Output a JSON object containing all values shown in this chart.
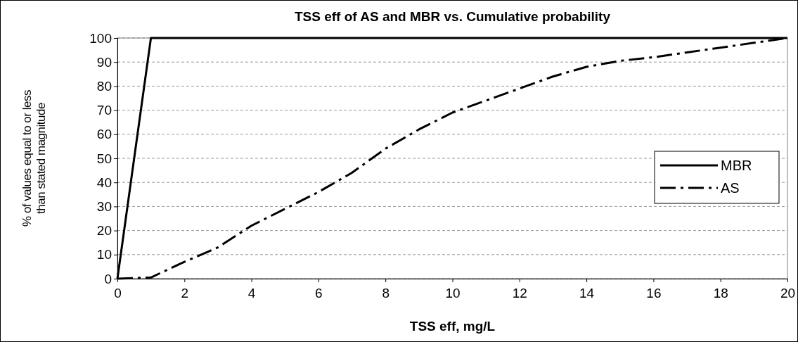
{
  "chart_data": {
    "type": "line",
    "title": "TSS eff of AS and MBR vs. Cumulative probability",
    "xlabel": "TSS eff, mg/L",
    "ylabel": "% of values equal to or less\nthan stated magnitude",
    "xlim": [
      0,
      20
    ],
    "xticks": [
      0,
      2,
      4,
      6,
      8,
      10,
      12,
      14,
      16,
      18,
      20
    ],
    "ylim": [
      0,
      100
    ],
    "yticks": [
      0,
      10,
      20,
      30,
      40,
      50,
      60,
      70,
      80,
      90,
      100
    ],
    "grid": "y",
    "legend": "right",
    "marker": "none",
    "series": [
      {
        "name": "MBR",
        "color": "#000000",
        "line_style": "solid",
        "x": [
          0,
          1,
          20
        ],
        "values": [
          0,
          100,
          100
        ]
      },
      {
        "name": "AS",
        "color": "#000000",
        "line_style": "dashed",
        "x": [
          0,
          1,
          2,
          3,
          4,
          5,
          6,
          7,
          8,
          9,
          10,
          11,
          12,
          13,
          14,
          15,
          16,
          17,
          18,
          19,
          20
        ],
        "values": [
          0,
          0.5,
          7,
          13,
          22,
          29,
          36,
          44,
          54,
          62,
          69,
          74,
          79,
          84,
          88,
          90.5,
          92,
          94,
          96,
          98,
          100
        ]
      }
    ]
  }
}
